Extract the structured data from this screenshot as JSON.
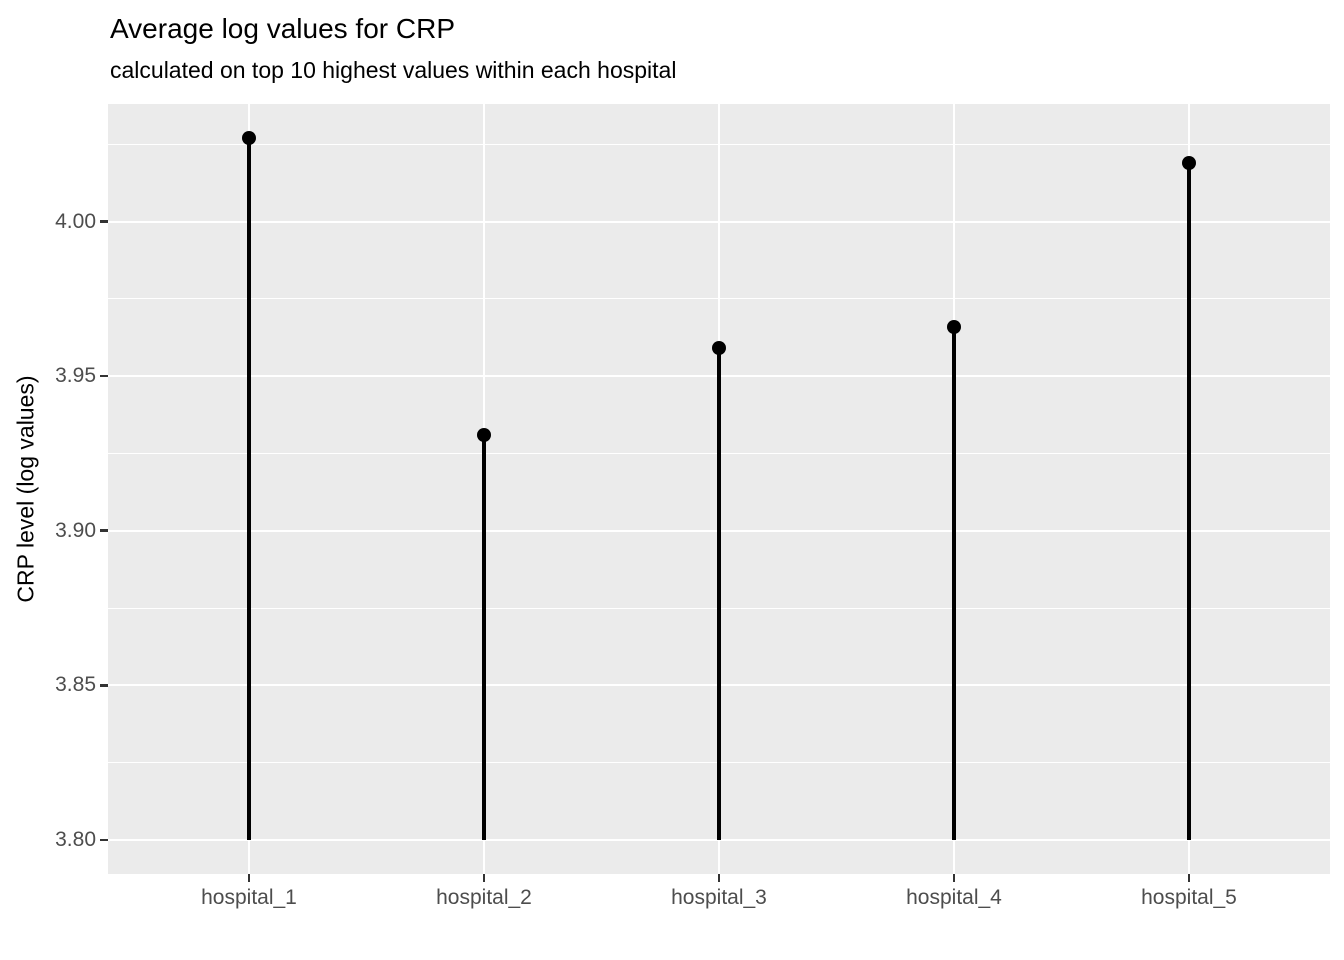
{
  "chart": {
    "title": "Average log values for CRP",
    "subtitle": "calculated on top 10 highest values within each hospital",
    "y_axis_title": "CRP level (log values)"
  },
  "chart_data": {
    "type": "scatter",
    "style": "lollipop",
    "title": "Average log values for CRP",
    "subtitle": "calculated on top 10 highest values within each hospital",
    "xlabel": "",
    "ylabel": "CRP level (log values)",
    "categories": [
      "hospital_1",
      "hospital_2",
      "hospital_3",
      "hospital_4",
      "hospital_5"
    ],
    "values": [
      4.027,
      3.931,
      3.959,
      3.966,
      4.019
    ],
    "stem_base": 3.8,
    "ylim": [
      3.789,
      4.038
    ],
    "yticks": [
      3.8,
      3.85,
      3.9,
      3.95,
      4.0
    ],
    "ytick_labels": [
      "3.80",
      "3.85",
      "3.90",
      "3.95",
      "4.00"
    ],
    "minor_yticks": [
      3.825,
      3.875,
      3.925,
      3.975,
      4.025
    ],
    "grid": true,
    "legend": false,
    "colors": {
      "panel_background": "#EBEBEB",
      "gridline": "#FFFFFF",
      "stem": "#000000",
      "point": "#000000",
      "tick_label": "#4D4D4D",
      "tick_mark": "#333333",
      "title_text": "#000000"
    }
  }
}
